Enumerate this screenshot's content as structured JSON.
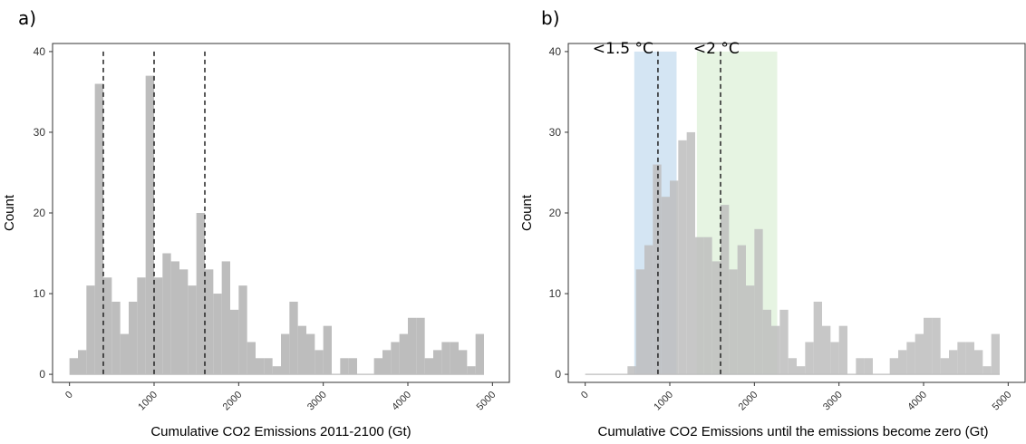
{
  "chart_data": [
    {
      "panel": "a)",
      "type": "bar",
      "subtype": "histogram",
      "xlabel": "Cumulative CO2 Emissions 2011-2100 (Gt)",
      "ylabel": "Count",
      "xlim": [
        -200,
        5200
      ],
      "ylim": [
        -1,
        41
      ],
      "xticks": [
        "0",
        "1000",
        "2000",
        "3000",
        "4000",
        "5000"
      ],
      "yticks": [
        "0",
        "10",
        "20",
        "30",
        "40"
      ],
      "grid": false,
      "bin_width": 100,
      "bar_color": "#bdbdbd",
      "bins": [
        [
          0,
          0
        ],
        [
          50,
          2
        ],
        [
          150,
          3
        ],
        [
          250,
          11
        ],
        [
          350,
          36
        ],
        [
          450,
          12
        ],
        [
          550,
          9
        ],
        [
          650,
          5
        ],
        [
          750,
          9
        ],
        [
          850,
          12
        ],
        [
          950,
          37
        ],
        [
          1050,
          12
        ],
        [
          1150,
          15
        ],
        [
          1250,
          14
        ],
        [
          1350,
          13
        ],
        [
          1450,
          11
        ],
        [
          1550,
          20
        ],
        [
          1650,
          13
        ],
        [
          1750,
          10
        ],
        [
          1850,
          14
        ],
        [
          1950,
          8
        ],
        [
          2050,
          11
        ],
        [
          2150,
          4
        ],
        [
          2250,
          2
        ],
        [
          2350,
          2
        ],
        [
          2450,
          1
        ],
        [
          2550,
          5
        ],
        [
          2650,
          9
        ],
        [
          2750,
          6
        ],
        [
          2850,
          5
        ],
        [
          2950,
          3
        ],
        [
          3050,
          6
        ],
        [
          3150,
          0
        ],
        [
          3250,
          2
        ],
        [
          3350,
          2
        ],
        [
          3450,
          0
        ],
        [
          3550,
          0
        ],
        [
          3650,
          2
        ],
        [
          3750,
          3
        ],
        [
          3850,
          4
        ],
        [
          3950,
          5
        ],
        [
          4050,
          7
        ],
        [
          4150,
          7
        ],
        [
          4250,
          2
        ],
        [
          4350,
          3
        ],
        [
          4450,
          4
        ],
        [
          4550,
          4
        ],
        [
          4650,
          3
        ],
        [
          4750,
          1
        ],
        [
          4850,
          5
        ]
      ],
      "vlines": [
        400,
        1000,
        1600
      ],
      "vline_style": "dashed"
    },
    {
      "panel": "b)",
      "type": "bar",
      "subtype": "histogram",
      "xlabel": "Cumulative CO2 Emissions until the emissions become zero (Gt)",
      "ylabel": "Count",
      "xlim": [
        -200,
        5200
      ],
      "ylim": [
        -1,
        41
      ],
      "xticks": [
        "0",
        "1000",
        "2000",
        "3000",
        "4000",
        "5000"
      ],
      "yticks": [
        "0",
        "10",
        "20",
        "30",
        "40"
      ],
      "grid": false,
      "bin_width": 100,
      "bar_color": "#bdbdbd",
      "bins": [
        [
          0,
          0
        ],
        [
          100,
          0
        ],
        [
          200,
          0
        ],
        [
          300,
          0
        ],
        [
          400,
          0
        ],
        [
          550,
          1
        ],
        [
          650,
          13
        ],
        [
          750,
          16
        ],
        [
          850,
          26
        ],
        [
          950,
          22
        ],
        [
          1050,
          24
        ],
        [
          1150,
          29
        ],
        [
          1250,
          30
        ],
        [
          1350,
          17
        ],
        [
          1450,
          17
        ],
        [
          1550,
          14
        ],
        [
          1650,
          21
        ],
        [
          1750,
          13
        ],
        [
          1850,
          16
        ],
        [
          1950,
          11
        ],
        [
          2050,
          18
        ],
        [
          2150,
          8
        ],
        [
          2250,
          6
        ],
        [
          2350,
          8
        ],
        [
          2450,
          2
        ],
        [
          2550,
          1
        ],
        [
          2650,
          4
        ],
        [
          2750,
          9
        ],
        [
          2850,
          6
        ],
        [
          2950,
          4
        ],
        [
          3050,
          6
        ],
        [
          3150,
          0
        ],
        [
          3250,
          2
        ],
        [
          3350,
          2
        ],
        [
          3450,
          0
        ],
        [
          3550,
          0
        ],
        [
          3650,
          2
        ],
        [
          3750,
          3
        ],
        [
          3850,
          4
        ],
        [
          3950,
          5
        ],
        [
          4050,
          7
        ],
        [
          4150,
          7
        ],
        [
          4250,
          2
        ],
        [
          4350,
          3
        ],
        [
          4450,
          4
        ],
        [
          4550,
          4
        ],
        [
          4650,
          3
        ],
        [
          4750,
          1
        ],
        [
          4850,
          5
        ]
      ],
      "bands": [
        {
          "label": "<1.5 °C",
          "x_range": [
            580,
            1080
          ],
          "y_range": [
            0,
            40
          ],
          "color": "#b9d5ec",
          "line_x": 860
        },
        {
          "label": "<2 °C",
          "x_range": [
            1320,
            2270
          ],
          "y_range": [
            0,
            40
          ],
          "color": "#d6edd0",
          "line_x": 1600
        }
      ],
      "vline_style": "dashed"
    }
  ]
}
